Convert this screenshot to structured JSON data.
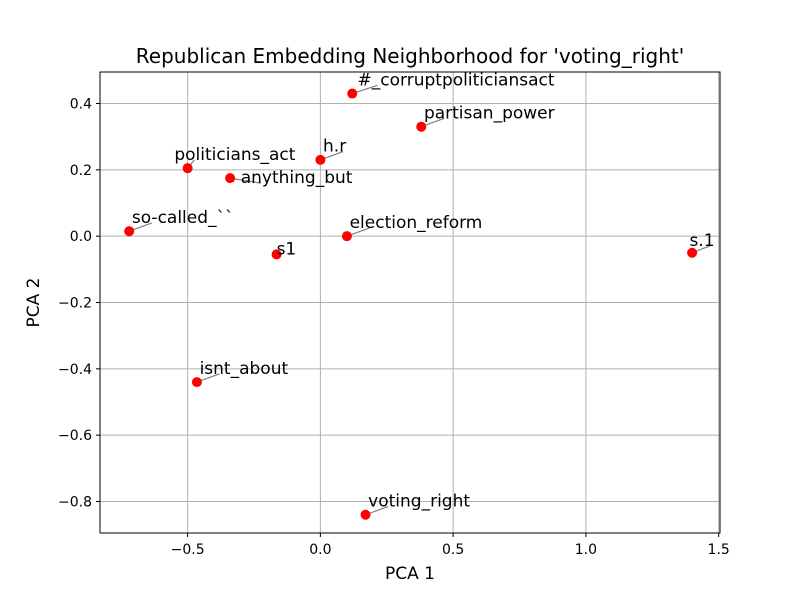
{
  "chart_data": {
    "type": "scatter",
    "title": "Republican Embedding Neighborhood for 'voting_right'",
    "xlabel": "PCA 1",
    "ylabel": "PCA 2",
    "xlim": [
      -0.83,
      1.505
    ],
    "ylim": [
      -0.895,
      0.495
    ],
    "xticks": [
      -0.5,
      0.0,
      0.5,
      1.0,
      1.5
    ],
    "xtick_labels": [
      "−0.5",
      "0.0",
      "0.5",
      "1.0",
      "1.5"
    ],
    "yticks": [
      -0.8,
      -0.6,
      -0.4,
      -0.2,
      0.0,
      0.2,
      0.4
    ],
    "ytick_labels": [
      "−0.8",
      "−0.6",
      "−0.4",
      "−0.2",
      "0.0",
      "0.2",
      "0.4"
    ],
    "grid": true,
    "marker_color": "#ff0000",
    "grid_color": "#b0b0b0",
    "leader_color": "#808080",
    "points": [
      {
        "label": "#_corruptpoliticiansact",
        "x": 0.12,
        "y": 0.43,
        "lx": 0.14,
        "ly": 0.455
      },
      {
        "label": "partisan_power",
        "x": 0.38,
        "y": 0.33,
        "lx": 0.39,
        "ly": 0.355
      },
      {
        "label": "h.r",
        "x": 0.0,
        "y": 0.23,
        "lx": 0.01,
        "ly": 0.255
      },
      {
        "label": "politicians_act",
        "x": -0.5,
        "y": 0.205,
        "lx": -0.55,
        "ly": 0.23
      },
      {
        "label": "anything_but",
        "x": -0.34,
        "y": 0.175,
        "lx": -0.3,
        "ly": 0.16
      },
      {
        "label": "so-called_``",
        "x": -0.72,
        "y": 0.015,
        "lx": -0.71,
        "ly": 0.04
      },
      {
        "label": "election_reform",
        "x": 0.1,
        "y": 0.0,
        "lx": 0.11,
        "ly": 0.025
      },
      {
        "label": "s1",
        "x": -0.165,
        "y": -0.055,
        "lx": -0.165,
        "ly": -0.055
      },
      {
        "label": "s.1",
        "x": 1.4,
        "y": -0.05,
        "lx": 1.39,
        "ly": -0.03
      },
      {
        "label": "isnt_about",
        "x": -0.465,
        "y": -0.44,
        "lx": -0.455,
        "ly": -0.415
      },
      {
        "label": "voting_right",
        "x": 0.17,
        "y": -0.84,
        "lx": 0.18,
        "ly": -0.815
      }
    ]
  }
}
